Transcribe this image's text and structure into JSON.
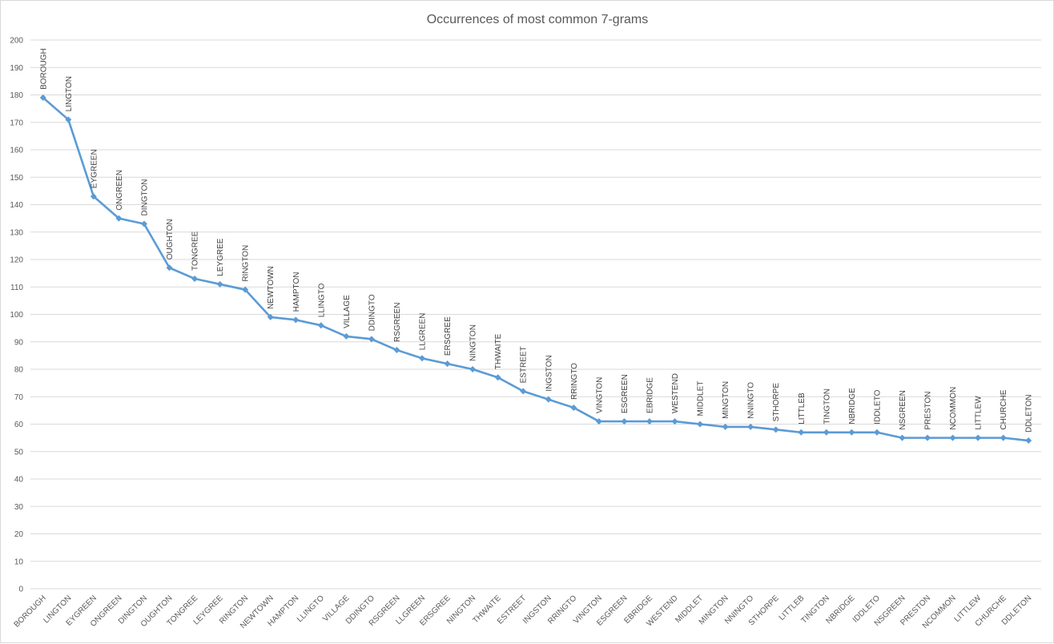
{
  "chart_data": {
    "type": "line",
    "title": "Occurrences of most common 7-grams",
    "xlabel": "",
    "ylabel": "",
    "ylim": [
      0,
      200
    ],
    "y_ticks": [
      0,
      10,
      20,
      30,
      40,
      50,
      60,
      70,
      80,
      90,
      100,
      110,
      120,
      130,
      140,
      150,
      160,
      170,
      180,
      190,
      200
    ],
    "grid": true,
    "legend": "none",
    "categories": [
      "BOROUGH",
      "LINGTON",
      "EYGREEN",
      "ONGREEN",
      "DINGTON",
      "OUGHTON",
      "TONGREE",
      "LEYGREE",
      "RINGTON",
      "NEWTOWN",
      "HAMPTON",
      "LLINGTO",
      "VILLAGE",
      "DDINGTO",
      "RSGREEN",
      "LLGREEN",
      "ERSGREE",
      "NINGTON",
      "THWAITE",
      "ESTREET",
      "INGSTON",
      "RRINGTO",
      "VINGTON",
      "ESGREEN",
      "EBRIDGE",
      "WESTEND",
      "MIDDLET",
      "MINGTON",
      "NNINGTO",
      "STHORPE",
      "LITTLEB",
      "TINGTON",
      "NBRIDGE",
      "IDDLETO",
      "NSGREEN",
      "PRESTON",
      "NCOMMON",
      "LITTLEW",
      "CHURCHE",
      "DDLETON"
    ],
    "series": [
      {
        "values": [
          179,
          171,
          143,
          135,
          133,
          117,
          113,
          111,
          109,
          99,
          98,
          96,
          92,
          91,
          87,
          84,
          82,
          80,
          77,
          72,
          69,
          66,
          61,
          61,
          61,
          61,
          60,
          59,
          59,
          58,
          57,
          57,
          57,
          57,
          55,
          55,
          55,
          55,
          55,
          54
        ],
        "color": "#5b9bd5"
      }
    ],
    "data_labels": true
  }
}
